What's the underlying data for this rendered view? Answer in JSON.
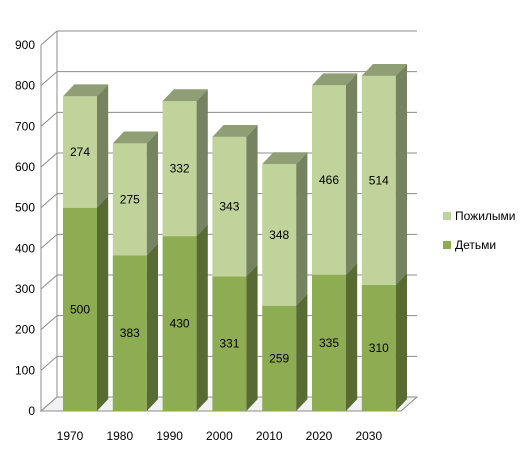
{
  "chart_data": {
    "type": "bar",
    "stacked": true,
    "three_d": true,
    "categories": [
      "1970",
      "1980",
      "1990",
      "2000",
      "2010",
      "2020",
      "2030"
    ],
    "series": [
      {
        "name": "Детьми",
        "values": [
          500,
          383,
          430,
          331,
          259,
          335,
          310
        ],
        "color": "#8eac52"
      },
      {
        "name": "Пожилыми",
        "values": [
          274,
          275,
          332,
          343,
          348,
          466,
          514
        ],
        "color": "#bfd39b"
      }
    ],
    "ylim": [
      0,
      900
    ],
    "yticks": [
      0,
      100,
      200,
      300,
      400,
      500,
      600,
      700,
      800,
      900
    ],
    "grid": true,
    "legend": "right",
    "title": "",
    "xlabel": "",
    "ylabel": ""
  }
}
